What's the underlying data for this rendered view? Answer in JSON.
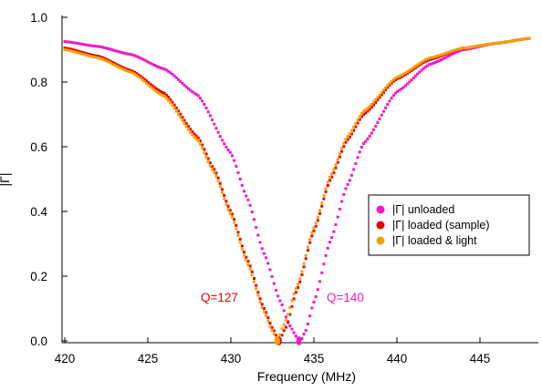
{
  "chart_data": {
    "type": "scatter",
    "title": "",
    "xlabel": "Frequency (MHz)",
    "ylabel": "|Γ|",
    "xlim": [
      419.8,
      448.2
    ],
    "ylim": [
      -0.01,
      1.0
    ],
    "x_ticks": [
      "420",
      "425",
      "430",
      "435",
      "440",
      "445"
    ],
    "y_ticks": [
      "0.0",
      "0.2",
      "0.4",
      "0.6",
      "0.8",
      "1.0"
    ],
    "grid": false,
    "legend_position": "center-right",
    "series": [
      {
        "name": "|Γ| unloaded",
        "color": "#f019c8",
        "resonance_mhz": 434.1,
        "q": 140,
        "x": [
          420,
          422,
          424,
          426,
          428,
          430,
          431,
          432,
          433,
          433.5,
          434,
          434.2,
          434.5,
          435,
          436,
          437,
          438,
          440,
          442,
          444,
          446,
          448
        ],
        "y": [
          0.925,
          0.91,
          0.885,
          0.84,
          0.76,
          0.58,
          0.44,
          0.27,
          0.12,
          0.05,
          0.01,
          0.0,
          0.03,
          0.12,
          0.31,
          0.48,
          0.61,
          0.77,
          0.855,
          0.9,
          0.92,
          0.935
        ]
      },
      {
        "name": "|Γ| loaded (sample)",
        "color": "#e60000",
        "resonance_mhz": 432.9,
        "q": 127,
        "x": [
          420,
          422,
          424,
          426,
          428,
          429,
          430,
          431,
          432,
          432.5,
          432.9,
          433.3,
          434,
          435,
          436,
          437,
          438,
          440,
          442,
          444,
          446,
          448
        ],
        "y": [
          0.905,
          0.88,
          0.835,
          0.765,
          0.63,
          0.53,
          0.4,
          0.25,
          0.1,
          0.04,
          0.0,
          0.04,
          0.16,
          0.34,
          0.5,
          0.62,
          0.7,
          0.81,
          0.87,
          0.905,
          0.92,
          0.935
        ]
      },
      {
        "name": "|Γ| loaded & light",
        "color": "#f5a000",
        "resonance_mhz": 432.8,
        "q": null,
        "x": [
          420,
          422,
          424,
          426,
          428,
          429,
          430,
          431,
          432,
          432.5,
          432.8,
          433.2,
          434,
          435,
          436,
          437,
          438,
          440,
          442,
          444,
          446,
          448
        ],
        "y": [
          0.9,
          0.875,
          0.83,
          0.755,
          0.62,
          0.52,
          0.39,
          0.24,
          0.09,
          0.03,
          0.0,
          0.05,
          0.17,
          0.35,
          0.51,
          0.63,
          0.71,
          0.815,
          0.875,
          0.905,
          0.92,
          0.935
        ]
      }
    ],
    "annotations": [
      {
        "text": "Q=127",
        "color": "#e60000",
        "x": 430.3,
        "y": 0.14
      },
      {
        "text": "Q=140",
        "color": "#f019c8",
        "x": 437.0,
        "y": 0.14
      }
    ]
  }
}
